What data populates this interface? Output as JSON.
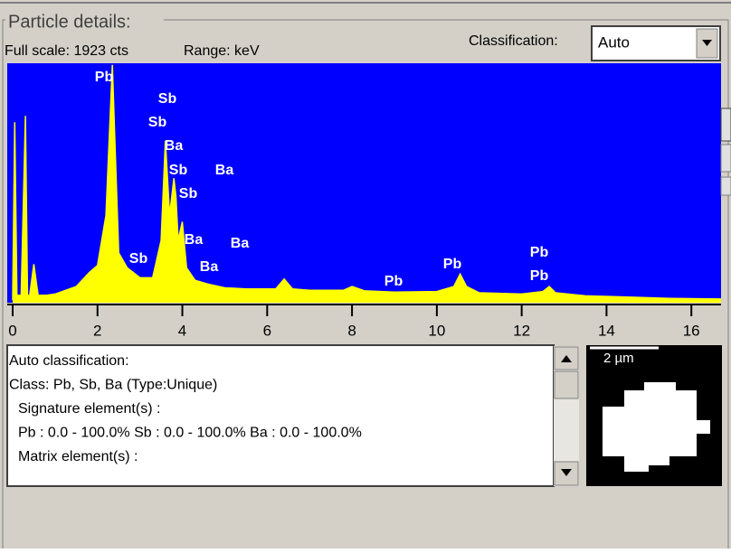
{
  "header": {
    "title": "Particle details:",
    "full_scale": "Full scale: 1923 cts",
    "range": "Range: keV"
  },
  "classification": {
    "label": "Classification:",
    "value": "Auto"
  },
  "spectrum": {
    "type": "area",
    "x": [
      0.0,
      0.05,
      0.1,
      0.2,
      0.3,
      0.35,
      0.4,
      0.5,
      0.6,
      0.8,
      1.0,
      1.5,
      1.8,
      2.0,
      2.2,
      2.3,
      2.35,
      2.4,
      2.5,
      2.7,
      3.0,
      3.3,
      3.5,
      3.6,
      3.7,
      3.8,
      3.85,
      3.9,
      4.0,
      4.1,
      4.3,
      4.6,
      5.0,
      5.5,
      6.2,
      6.4,
      6.6,
      7.0,
      7.8,
      8.0,
      8.3,
      9.0,
      10.0,
      10.4,
      10.55,
      10.7,
      11.0,
      12.0,
      12.5,
      12.65,
      12.8,
      13.5,
      14.5,
      15.5,
      16.7
    ],
    "values": [
      20,
      1450,
      60,
      60,
      1500,
      60,
      60,
      310,
      60,
      60,
      70,
      130,
      240,
      300,
      700,
      1500,
      1910,
      1400,
      400,
      280,
      200,
      200,
      500,
      1300,
      700,
      1000,
      850,
      500,
      650,
      280,
      180,
      150,
      120,
      110,
      110,
      190,
      110,
      100,
      100,
      130,
      95,
      85,
      90,
      130,
      230,
      130,
      80,
      70,
      90,
      130,
      80,
      55,
      45,
      35,
      30
    ],
    "xlim": [
      0,
      16.7
    ],
    "ylim": [
      0,
      1923
    ],
    "xticks": [
      0,
      2,
      4,
      6,
      8,
      10,
      12,
      14,
      16
    ],
    "color": "#ffff00",
    "background": "#0000ff",
    "peak_labels": [
      "Pb",
      "Sb",
      "Sb",
      "Ba",
      "Sb",
      "Ba",
      "Sb",
      "Ba",
      "Ba",
      "Sb",
      "Ba",
      "Pb",
      "Pb",
      "Pb",
      "Pb"
    ]
  },
  "details": {
    "lines": [
      "Auto classification:",
      "Class: Pb, Sb, Ba (Type:Unique)",
      "Signature element(s) :",
      "Pb : 0.0 - 100.0%  Sb : 0.0 - 100.0%  Ba : 0.0 - 100.0%",
      "Matrix element(s) :"
    ]
  },
  "image": {
    "scale_label": "2 µm"
  }
}
